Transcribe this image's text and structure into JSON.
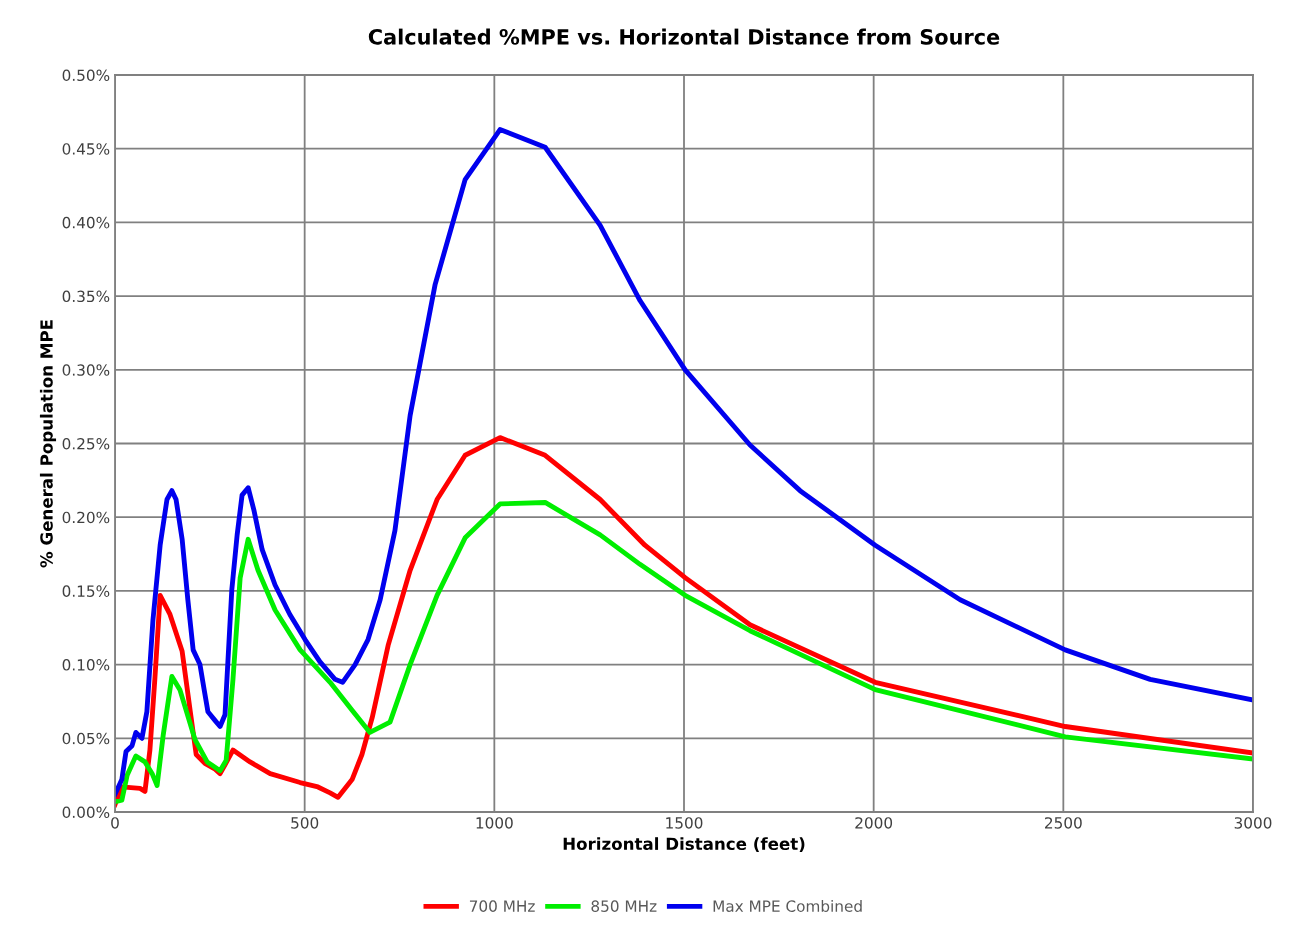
{
  "chart_data": {
    "type": "line",
    "title": "Calculated %MPE vs. Horizontal Distance from Source",
    "xlabel": "Horizontal Distance (feet)",
    "ylabel": "% General Population MPE",
    "xlim": [
      0,
      3000
    ],
    "xticks": [
      0,
      500,
      1000,
      1500,
      2000,
      2500,
      3000
    ],
    "ylim": [
      0,
      0.5
    ],
    "yticks": [
      {
        "value": 0,
        "label": "0.00%"
      },
      {
        "value": 0.05,
        "label": "0.05%"
      },
      {
        "value": 0.1,
        "label": "0.10%"
      },
      {
        "value": 0.15,
        "label": "0.15%"
      },
      {
        "value": 0.2,
        "label": "0.20%"
      },
      {
        "value": 0.25,
        "label": "0.25%"
      },
      {
        "value": 0.3,
        "label": "0.30%"
      },
      {
        "value": 0.35,
        "label": "0.35%"
      },
      {
        "value": 0.4,
        "label": "0.40%"
      },
      {
        "value": 0.45,
        "label": "0.45%"
      },
      {
        "value": 0.5,
        "label": "0.50%"
      }
    ],
    "grid": true,
    "legend": "bottom",
    "marker": "none",
    "line_style": "solid",
    "series": [
      {
        "name": "700 MHz",
        "color": "#ff0000",
        "x": [
          0,
          18,
          66,
          79,
          92,
          105,
          119,
          145,
          177,
          198,
          214,
          237,
          264,
          277,
          290,
          311,
          356,
          409,
          488,
          535,
          567,
          588,
          625,
          651,
          678,
          720,
          778,
          849,
          923,
          1015,
          1134,
          1279,
          1397,
          1503,
          1674,
          2004,
          2505,
          3000
        ],
        "values": [
          0.005,
          0.017,
          0.016,
          0.014,
          0.042,
          0.09,
          0.147,
          0.134,
          0.109,
          0.069,
          0.039,
          0.033,
          0.029,
          0.026,
          0.032,
          0.042,
          0.034,
          0.026,
          0.02,
          0.017,
          0.013,
          0.01,
          0.022,
          0.039,
          0.064,
          0.113,
          0.164,
          0.212,
          0.242,
          0.254,
          0.242,
          0.212,
          0.181,
          0.159,
          0.127,
          0.088,
          0.058,
          0.04
        ]
      },
      {
        "name": "850 MHz",
        "color": "#00ee00",
        "x": [
          0,
          18,
          32,
          55,
          79,
          98,
          111,
          127,
          150,
          171,
          211,
          243,
          277,
          293,
          311,
          330,
          351,
          377,
          422,
          488,
          567,
          625,
          672,
          725,
          778,
          849,
          923,
          1015,
          1134,
          1279,
          1384,
          1503,
          1674,
          2004,
          2505,
          3000
        ],
        "values": [
          0.007,
          0.008,
          0.025,
          0.038,
          0.034,
          0.026,
          0.018,
          0.052,
          0.092,
          0.083,
          0.049,
          0.034,
          0.028,
          0.035,
          0.09,
          0.159,
          0.185,
          0.164,
          0.137,
          0.11,
          0.088,
          0.069,
          0.054,
          0.061,
          0.1,
          0.147,
          0.186,
          0.209,
          0.21,
          0.188,
          0.168,
          0.147,
          0.123,
          0.083,
          0.051,
          0.036
        ]
      },
      {
        "name": "Max MPE Combined",
        "color": "#0000ee",
        "x": [
          0,
          18,
          29,
          45,
          55,
          71,
          84,
          100,
          119,
          137,
          150,
          161,
          177,
          192,
          206,
          224,
          235,
          245,
          264,
          277,
          290,
          308,
          322,
          335,
          351,
          366,
          388,
          422,
          461,
          501,
          540,
          580,
          600,
          633,
          667,
          699,
          738,
          778,
          844,
          923,
          1015,
          1134,
          1279,
          1384,
          1503,
          1674,
          1806,
          2004,
          2228,
          2505,
          2729,
          3000
        ],
        "values": [
          0.012,
          0.022,
          0.041,
          0.045,
          0.054,
          0.05,
          0.068,
          0.13,
          0.181,
          0.212,
          0.218,
          0.212,
          0.185,
          0.144,
          0.11,
          0.1,
          0.083,
          0.068,
          0.062,
          0.058,
          0.066,
          0.151,
          0.188,
          0.215,
          0.22,
          0.205,
          0.178,
          0.154,
          0.134,
          0.117,
          0.102,
          0.09,
          0.088,
          0.1,
          0.117,
          0.144,
          0.191,
          0.269,
          0.358,
          0.429,
          0.463,
          0.451,
          0.398,
          0.347,
          0.3,
          0.249,
          0.218,
          0.181,
          0.144,
          0.11,
          0.09,
          0.076
        ]
      }
    ]
  }
}
